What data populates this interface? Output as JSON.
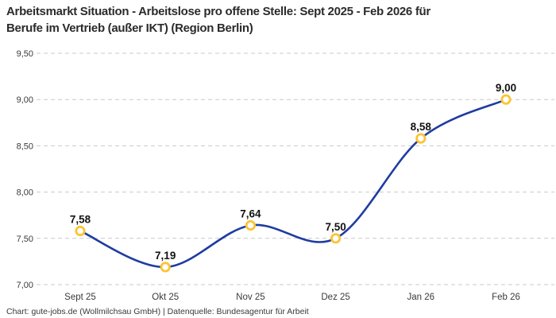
{
  "header": {
    "title_line1": "Arbeitsmarkt Situation - Arbeitslose pro offene Stelle: Sept 2025 - Feb 2026 für",
    "title_line2": "Berufe im Vertrieb (außer IKT) (Region Berlin)"
  },
  "footer": {
    "credit": "Chart: gute-jobs.de (Wollmilchsau GmbH) | Datenquelle: Bundesagentur für Arbeit"
  },
  "chart_data": {
    "type": "line",
    "title": "Arbeitsmarkt Situation - Arbeitslose pro offene Stelle: Sept 2025 - Feb 2026 für Berufe im Vertrieb (außer IKT) (Region Berlin)",
    "categories": [
      "Sept 25",
      "Okt 25",
      "Nov 25",
      "Dez 25",
      "Jan 26",
      "Feb 26"
    ],
    "values": [
      7.58,
      7.19,
      7.64,
      7.5,
      8.58,
      9.0
    ],
    "point_labels": [
      "7,58",
      "7,19",
      "7,64",
      "7,50",
      "8,58",
      "9,00"
    ],
    "series_name": "Arbeitslose pro offene Stelle",
    "xlabel": "",
    "ylabel": "",
    "ylim": [
      7.0,
      9.5
    ],
    "yticks": [
      {
        "value": 9.5,
        "label": "9,50"
      },
      {
        "value": 9.0,
        "label": "9,00"
      },
      {
        "value": 8.5,
        "label": "8,50"
      },
      {
        "value": 8.0,
        "label": "8,00"
      },
      {
        "value": 7.5,
        "label": "7,50"
      },
      {
        "value": 7.0,
        "label": "7,00"
      }
    ],
    "grid": "horizontal-dashed",
    "legend": "none",
    "line_smoothing": "spline",
    "colors": {
      "line": "#1e3ca0",
      "marker_stroke": "#fcc434",
      "marker_fill": "#ffffff",
      "grid": "#c9c9c9",
      "title_text": "#2b2b2b",
      "axis_text": "#3a3a3a",
      "label_text": "#121212",
      "background": "#ffffff"
    }
  }
}
